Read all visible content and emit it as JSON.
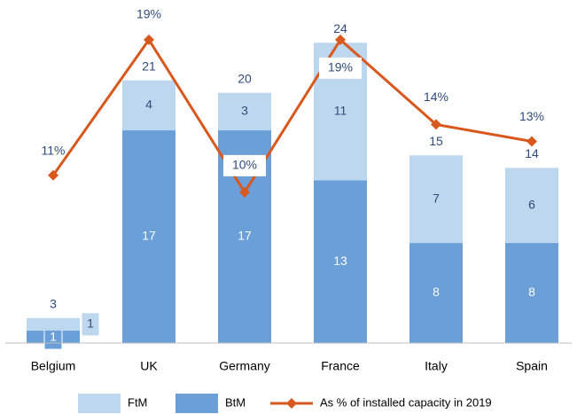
{
  "chart_data": {
    "type": "bar-line",
    "categories": [
      "Belgium",
      "UK",
      "Germany",
      "France",
      "Italy",
      "Spain"
    ],
    "series": [
      {
        "name": "BtM",
        "color": "#6a9fd8",
        "values": [
          1,
          17,
          17,
          13,
          8,
          8
        ]
      },
      {
        "name": "FtM",
        "color": "#bdd7ee",
        "values": [
          1,
          4,
          3,
          11,
          7,
          6
        ]
      },
      {
        "name": "As % of installed capacity in 2019",
        "color": "#d9581e",
        "axis": "y2",
        "type": "line",
        "values": [
          11,
          19,
          10,
          19,
          14,
          13
        ],
        "value_labels": [
          "11%",
          "19%",
          "10%",
          "19%",
          "14%",
          "13%"
        ]
      }
    ],
    "totals": [
      3,
      21,
      20,
      24,
      15,
      14
    ],
    "ylim": [
      0,
      26
    ],
    "y2lim": [
      1.1,
      20.3
    ]
  }
}
